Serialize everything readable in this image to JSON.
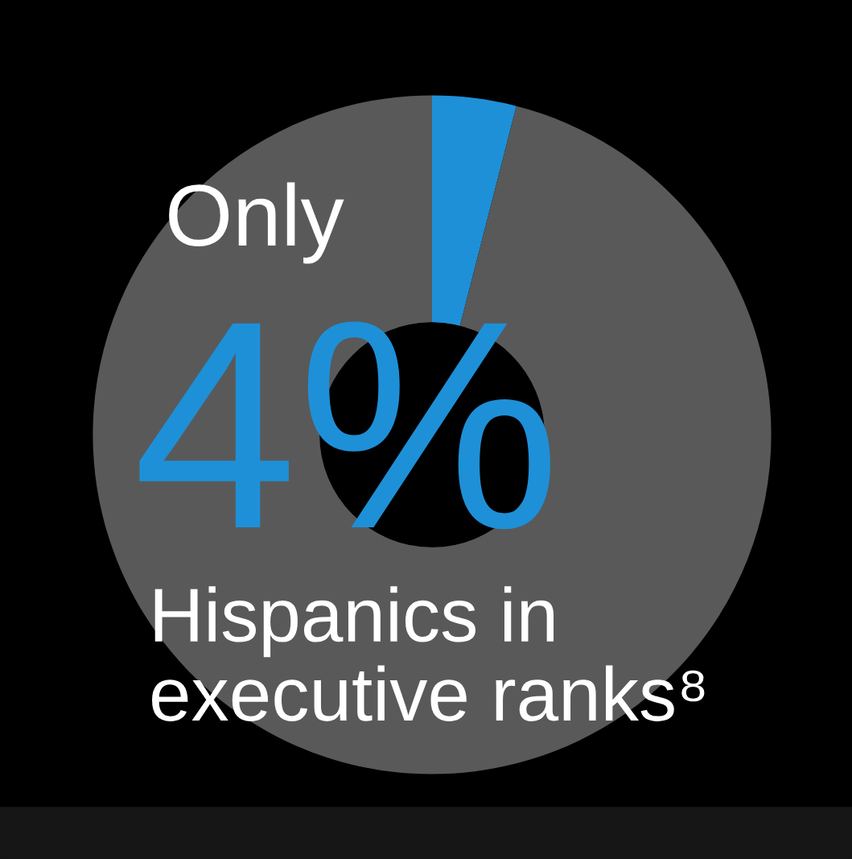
{
  "chart_data": {
    "type": "donut",
    "categories": [
      null,
      null
    ],
    "values": [
      4,
      96
    ],
    "colors": [
      "#1e90d8",
      "#595959"
    ],
    "annotations": [
      "Only",
      "4%",
      "Hispanics in\nexecutive ranks⁸"
    ]
  }
}
